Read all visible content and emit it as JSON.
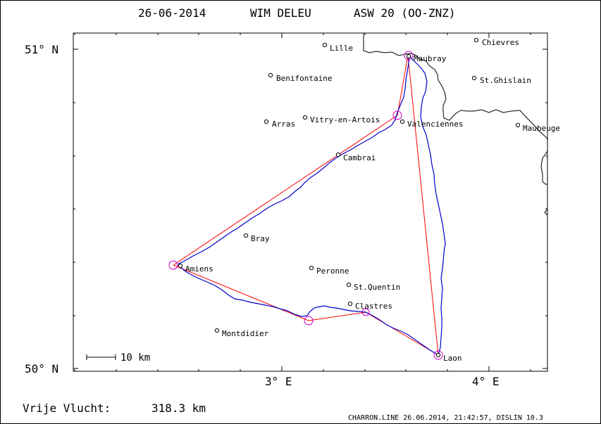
{
  "header": {
    "date": "26-06-2014",
    "pilot": "WIM DELEU",
    "glider": "ASW 20 (OO-ZNZ)"
  },
  "axes": {
    "lat_labels": [
      "51° N",
      "50° N"
    ],
    "lon_labels": [
      "3° E",
      "4° E"
    ]
  },
  "scale_bar": {
    "label": "10 km"
  },
  "distance": {
    "label": "Vrije Vlucht:",
    "value": "318.3 km"
  },
  "footer": {
    "text": "CHARRON.LINE 26.06.2014, 21:42:57, DISLIN 10.3"
  },
  "places": [
    {
      "name": "Lille"
    },
    {
      "name": "Chievres"
    },
    {
      "name": "Maubray"
    },
    {
      "name": "Benifontaine"
    },
    {
      "name": "St.Ghislain"
    },
    {
      "name": "Arras"
    },
    {
      "name": "Vitry-en-Artois"
    },
    {
      "name": "Valenciennes"
    },
    {
      "name": "Maubeuge"
    },
    {
      "name": "Cambrai"
    },
    {
      "name": "Bray"
    },
    {
      "name": "Amiens"
    },
    {
      "name": "Peronne"
    },
    {
      "name": "St.Quentin"
    },
    {
      "name": "Clastres"
    },
    {
      "name": "Montdidier"
    },
    {
      "name": "Laon"
    }
  ],
  "colors": {
    "track": "#0000cc",
    "task_lines": "#ff0000",
    "turnpoints": "#cc00cc",
    "border": "#000000"
  }
}
